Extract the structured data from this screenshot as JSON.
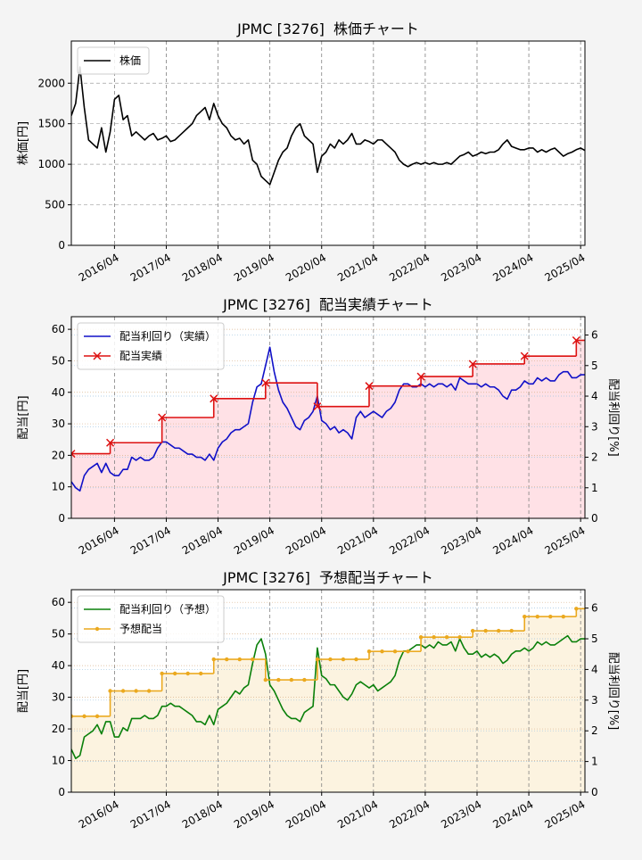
{
  "chart_data": [
    {
      "type": "line",
      "title": "JPMC [3276]  株価チャート",
      "ylabel": "株価[円]",
      "x": [
        "2015/06",
        "2015/07",
        "2015/08",
        "2015/09",
        "2015/10",
        "2015/11",
        "2015/12",
        "2016/01",
        "2016/02",
        "2016/03",
        "2016/04",
        "2016/05",
        "2016/06",
        "2016/07",
        "2016/08",
        "2016/09",
        "2016/10",
        "2016/11",
        "2016/12",
        "2017/01",
        "2017/02",
        "2017/03",
        "2017/04",
        "2017/05",
        "2017/06",
        "2017/07",
        "2017/08",
        "2017/09",
        "2017/10",
        "2017/11",
        "2017/12",
        "2018/01",
        "2018/02",
        "2018/03",
        "2018/04",
        "2018/05",
        "2018/06",
        "2018/07",
        "2018/08",
        "2018/09",
        "2018/10",
        "2018/11",
        "2018/12",
        "2019/01",
        "2019/02",
        "2019/03",
        "2019/04",
        "2019/05",
        "2019/06",
        "2019/07",
        "2019/08",
        "2019/09",
        "2019/10",
        "2019/11",
        "2019/12",
        "2020/01",
        "2020/02",
        "2020/03",
        "2020/04",
        "2020/05",
        "2020/06",
        "2020/07",
        "2020/08",
        "2020/09",
        "2020/10",
        "2020/11",
        "2020/12",
        "2021/01",
        "2021/02",
        "2021/03",
        "2021/04",
        "2021/05",
        "2021/06",
        "2021/07",
        "2021/08",
        "2021/09",
        "2021/10",
        "2021/11",
        "2021/12",
        "2022/01",
        "2022/02",
        "2022/03",
        "2022/04",
        "2022/05",
        "2022/06",
        "2022/07",
        "2022/08",
        "2022/09",
        "2022/10",
        "2022/11",
        "2022/12",
        "2023/01",
        "2023/02",
        "2023/03",
        "2023/04",
        "2023/05",
        "2023/06",
        "2023/07",
        "2023/08",
        "2023/09",
        "2023/10",
        "2023/11",
        "2023/12",
        "2024/01",
        "2024/02",
        "2024/03",
        "2024/04",
        "2024/05",
        "2024/06",
        "2024/07",
        "2024/08",
        "2024/09",
        "2024/10",
        "2024/11",
        "2024/12",
        "2025/01",
        "2025/02",
        "2025/03",
        "2025/04",
        "2025/05"
      ],
      "series": [
        {
          "name": "株価",
          "color": "#000000",
          "values": [
            1600,
            1750,
            2200,
            1700,
            1300,
            1250,
            1200,
            1450,
            1150,
            1400,
            1800,
            1850,
            1550,
            1600,
            1350,
            1400,
            1350,
            1300,
            1350,
            1380,
            1300,
            1320,
            1350,
            1280,
            1300,
            1350,
            1400,
            1450,
            1500,
            1600,
            1650,
            1700,
            1550,
            1750,
            1600,
            1500,
            1450,
            1350,
            1300,
            1320,
            1250,
            1300,
            1050,
            1000,
            850,
            800,
            750,
            900,
            1050,
            1150,
            1200,
            1350,
            1450,
            1500,
            1350,
            1300,
            1250,
            900,
            1100,
            1150,
            1250,
            1200,
            1300,
            1250,
            1300,
            1380,
            1250,
            1250,
            1300,
            1280,
            1250,
            1300,
            1300,
            1250,
            1200,
            1150,
            1050,
            1000,
            970,
            1000,
            1020,
            1000,
            1020,
            1000,
            1020,
            1000,
            1000,
            1020,
            1000,
            1050,
            1100,
            1120,
            1150,
            1100,
            1120,
            1150,
            1130,
            1150,
            1150,
            1180,
            1250,
            1300,
            1220,
            1200,
            1180,
            1180,
            1200,
            1200,
            1150,
            1180,
            1150,
            1180,
            1200,
            1150,
            1100,
            1130,
            1150,
            1180,
            1200,
            1170
          ]
        }
      ],
      "xlim": [
        "2015/06",
        "2025/05"
      ],
      "xticks": [
        "2016/04",
        "2017/04",
        "2018/04",
        "2019/04",
        "2020/04",
        "2021/04",
        "2022/04",
        "2023/04",
        "2024/04",
        "2025/04"
      ],
      "ylim": [
        0,
        2520
      ],
      "yticks": [
        0,
        500,
        1000,
        1500,
        2000
      ],
      "grid": true,
      "legend": "upper left"
    },
    {
      "type": "line",
      "title": "JPMC [3276]  配当実績チャート",
      "ylabel": "配当[円]",
      "y2label": "配当利回り[%]",
      "x": [
        "2015/06",
        "2015/07",
        "2015/08",
        "2015/09",
        "2015/10",
        "2015/11",
        "2015/12",
        "2016/01",
        "2016/02",
        "2016/03",
        "2016/04",
        "2016/05",
        "2016/06",
        "2016/07",
        "2016/08",
        "2016/09",
        "2016/10",
        "2016/11",
        "2016/12",
        "2017/01",
        "2017/02",
        "2017/03",
        "2017/04",
        "2017/05",
        "2017/06",
        "2017/07",
        "2017/08",
        "2017/09",
        "2017/10",
        "2017/11",
        "2017/12",
        "2018/01",
        "2018/02",
        "2018/03",
        "2018/04",
        "2018/05",
        "2018/06",
        "2018/07",
        "2018/08",
        "2018/09",
        "2018/10",
        "2018/11",
        "2018/12",
        "2019/01",
        "2019/02",
        "2019/03",
        "2019/04",
        "2019/05",
        "2019/06",
        "2019/07",
        "2019/08",
        "2019/09",
        "2019/10",
        "2019/11",
        "2019/12",
        "2020/01",
        "2020/02",
        "2020/03",
        "2020/04",
        "2020/05",
        "2020/06",
        "2020/07",
        "2020/08",
        "2020/09",
        "2020/10",
        "2020/11",
        "2020/12",
        "2021/01",
        "2021/02",
        "2021/03",
        "2021/04",
        "2021/05",
        "2021/06",
        "2021/07",
        "2021/08",
        "2021/09",
        "2021/10",
        "2021/11",
        "2021/12",
        "2022/01",
        "2022/02",
        "2022/03",
        "2022/04",
        "2022/05",
        "2022/06",
        "2022/07",
        "2022/08",
        "2022/09",
        "2022/10",
        "2022/11",
        "2022/12",
        "2023/01",
        "2023/02",
        "2023/03",
        "2023/04",
        "2023/05",
        "2023/06",
        "2023/07",
        "2023/08",
        "2023/09",
        "2023/10",
        "2023/11",
        "2023/12",
        "2024/01",
        "2024/02",
        "2024/03",
        "2024/04",
        "2024/05",
        "2024/06",
        "2024/07",
        "2024/08",
        "2024/09",
        "2024/10",
        "2024/11",
        "2024/12",
        "2025/01",
        "2025/02",
        "2025/03",
        "2025/04",
        "2025/05"
      ],
      "series": [
        {
          "name": "配当利回り（実績）",
          "color": "#1010c8",
          "axis": "y2",
          "values": [
            1.2,
            1.0,
            0.9,
            1.4,
            1.6,
            1.7,
            1.8,
            1.5,
            1.8,
            1.5,
            1.4,
            1.4,
            1.6,
            1.6,
            2.0,
            1.9,
            2.0,
            1.9,
            1.9,
            2.0,
            2.3,
            2.5,
            2.5,
            2.4,
            2.3,
            2.3,
            2.2,
            2.1,
            2.1,
            2.0,
            2.0,
            1.9,
            2.1,
            1.9,
            2.3,
            2.5,
            2.6,
            2.8,
            2.9,
            2.9,
            3.0,
            3.1,
            3.8,
            4.3,
            4.4,
            5.0,
            5.6,
            4.8,
            4.2,
            3.8,
            3.6,
            3.3,
            3.0,
            2.9,
            3.2,
            3.3,
            3.5,
            4.0,
            3.2,
            3.1,
            2.9,
            3.0,
            2.8,
            2.9,
            2.8,
            2.6,
            3.3,
            3.5,
            3.3,
            3.4,
            3.5,
            3.4,
            3.3,
            3.5,
            3.6,
            3.8,
            4.2,
            4.4,
            4.4,
            4.3,
            4.3,
            4.4,
            4.3,
            4.4,
            4.3,
            4.4,
            4.4,
            4.3,
            4.4,
            4.2,
            4.6,
            4.5,
            4.4,
            4.4,
            4.4,
            4.3,
            4.4,
            4.3,
            4.3,
            4.2,
            4.0,
            3.9,
            4.2,
            4.2,
            4.3,
            4.5,
            4.4,
            4.4,
            4.6,
            4.5,
            4.6,
            4.5,
            4.5,
            4.7,
            4.8,
            4.8,
            4.6,
            4.6,
            4.7,
            4.7
          ]
        },
        {
          "name": "配当実績",
          "color": "#dd1111",
          "drawstyle": "steps-post",
          "marker": "x",
          "fill": "#ffe1e6",
          "x": [
            "2015/06",
            "2016/03",
            "2017/03",
            "2018/03",
            "2019/03",
            "2020/03",
            "2021/03",
            "2022/03",
            "2023/03",
            "2024/03",
            "2025/03"
          ],
          "values": [
            20.5,
            24,
            32,
            38,
            43,
            35.5,
            42,
            45,
            49,
            51.5,
            56.5
          ]
        }
      ],
      "xlim": [
        "2015/06",
        "2025/05"
      ],
      "xticks": [
        "2016/04",
        "2017/04",
        "2018/04",
        "2019/04",
        "2020/04",
        "2021/04",
        "2022/04",
        "2023/04",
        "2024/04",
        "2025/04"
      ],
      "ylim": [
        0,
        64
      ],
      "yticks": [
        0,
        10,
        20,
        30,
        40,
        50,
        60
      ],
      "y2lim": [
        0,
        6.6
      ],
      "y2ticks": [
        0,
        1,
        2,
        3,
        4,
        5,
        6
      ],
      "grid": true,
      "legend": "upper left"
    },
    {
      "type": "line",
      "title": "JPMC [3276]  予想配当チャート",
      "ylabel": "配当[円]",
      "y2label": "配当利回り[%]",
      "x": [
        "2015/06",
        "2015/07",
        "2015/08",
        "2015/09",
        "2015/10",
        "2015/11",
        "2015/12",
        "2016/01",
        "2016/02",
        "2016/03",
        "2016/04",
        "2016/05",
        "2016/06",
        "2016/07",
        "2016/08",
        "2016/09",
        "2016/10",
        "2016/11",
        "2016/12",
        "2017/01",
        "2017/02",
        "2017/03",
        "2017/04",
        "2017/05",
        "2017/06",
        "2017/07",
        "2017/08",
        "2017/09",
        "2017/10",
        "2017/11",
        "2017/12",
        "2018/01",
        "2018/02",
        "2018/03",
        "2018/04",
        "2018/05",
        "2018/06",
        "2018/07",
        "2018/08",
        "2018/09",
        "2018/10",
        "2018/11",
        "2018/12",
        "2019/01",
        "2019/02",
        "2019/03",
        "2019/04",
        "2019/05",
        "2019/06",
        "2019/07",
        "2019/08",
        "2019/09",
        "2019/10",
        "2019/11",
        "2019/12",
        "2020/01",
        "2020/02",
        "2020/03",
        "2020/04",
        "2020/05",
        "2020/06",
        "2020/07",
        "2020/08",
        "2020/09",
        "2020/10",
        "2020/11",
        "2020/12",
        "2021/01",
        "2021/02",
        "2021/03",
        "2021/04",
        "2021/05",
        "2021/06",
        "2021/07",
        "2021/08",
        "2021/09",
        "2021/10",
        "2021/11",
        "2021/12",
        "2022/01",
        "2022/02",
        "2022/03",
        "2022/04",
        "2022/05",
        "2022/06",
        "2022/07",
        "2022/08",
        "2022/09",
        "2022/10",
        "2022/11",
        "2022/12",
        "2023/01",
        "2023/02",
        "2023/03",
        "2023/04",
        "2023/05",
        "2023/06",
        "2023/07",
        "2023/08",
        "2023/09",
        "2023/10",
        "2023/11",
        "2023/12",
        "2024/01",
        "2024/02",
        "2024/03",
        "2024/04",
        "2024/05",
        "2024/06",
        "2024/07",
        "2024/08",
        "2024/09",
        "2024/10",
        "2024/11",
        "2024/12",
        "2025/01",
        "2025/02",
        "2025/03",
        "2025/04",
        "2025/05"
      ],
      "series": [
        {
          "name": "配当利回り（予想）",
          "color": "#0a800a",
          "axis": "y2",
          "values": [
            1.4,
            1.1,
            1.2,
            1.8,
            1.9,
            2.0,
            2.2,
            1.9,
            2.3,
            2.3,
            1.8,
            1.8,
            2.1,
            2.0,
            2.4,
            2.4,
            2.4,
            2.5,
            2.4,
            2.4,
            2.5,
            2.8,
            2.8,
            2.9,
            2.8,
            2.8,
            2.7,
            2.6,
            2.5,
            2.3,
            2.3,
            2.2,
            2.5,
            2.2,
            2.7,
            2.8,
            2.9,
            3.1,
            3.3,
            3.2,
            3.4,
            3.5,
            4.2,
            4.8,
            5.0,
            4.5,
            3.5,
            3.3,
            3.0,
            2.7,
            2.5,
            2.4,
            2.4,
            2.3,
            2.6,
            2.7,
            2.8,
            4.7,
            3.8,
            3.7,
            3.5,
            3.5,
            3.3,
            3.1,
            3.0,
            3.2,
            3.5,
            3.6,
            3.5,
            3.4,
            3.5,
            3.3,
            3.4,
            3.5,
            3.6,
            3.8,
            4.3,
            4.6,
            4.6,
            4.7,
            4.8,
            4.8,
            4.7,
            4.8,
            4.7,
            4.9,
            4.8,
            4.8,
            4.9,
            4.6,
            5.0,
            4.7,
            4.5,
            4.5,
            4.6,
            4.4,
            4.5,
            4.4,
            4.5,
            4.4,
            4.2,
            4.3,
            4.5,
            4.6,
            4.6,
            4.7,
            4.6,
            4.7,
            4.9,
            4.8,
            4.9,
            4.8,
            4.8,
            4.9,
            5.0,
            5.1,
            4.9,
            4.9,
            5.0,
            5.0
          ]
        },
        {
          "name": "予想配当",
          "color": "#eba91f",
          "drawstyle": "steps-post",
          "marker": "o",
          "fill": "#fcf3e0",
          "x": [
            "2015/06",
            "2015/09",
            "2015/12",
            "2016/03",
            "2016/06",
            "2016/09",
            "2016/12",
            "2017/03",
            "2017/06",
            "2017/09",
            "2017/12",
            "2018/03",
            "2018/06",
            "2018/09",
            "2018/12",
            "2019/03",
            "2019/06",
            "2019/09",
            "2019/12",
            "2020/03",
            "2020/06",
            "2020/09",
            "2020/12",
            "2021/03",
            "2021/06",
            "2021/09",
            "2021/12",
            "2022/03",
            "2022/06",
            "2022/09",
            "2022/12",
            "2023/03",
            "2023/06",
            "2023/09",
            "2023/12",
            "2024/03",
            "2024/06",
            "2024/09",
            "2024/12",
            "2025/03"
          ],
          "values": [
            24,
            24,
            24,
            32,
            32,
            32,
            32,
            37.5,
            37.5,
            37.5,
            37.5,
            42,
            42,
            42,
            42,
            35.5,
            35.5,
            35.5,
            35.5,
            42,
            42,
            42,
            42,
            44.5,
            44.5,
            44.5,
            44.5,
            49,
            49,
            49,
            49,
            51,
            51,
            51,
            51,
            55.5,
            55.5,
            55.5,
            55.5,
            58
          ]
        }
      ],
      "xlim": [
        "2015/06",
        "2025/05"
      ],
      "xticks": [
        "2016/04",
        "2017/04",
        "2018/04",
        "2019/04",
        "2020/04",
        "2021/04",
        "2022/04",
        "2023/04",
        "2024/04",
        "2025/04"
      ],
      "ylim": [
        0,
        64
      ],
      "yticks": [
        0,
        10,
        20,
        30,
        40,
        50,
        60
      ],
      "y2lim": [
        0,
        6.6
      ],
      "y2ticks": [
        0,
        1,
        2,
        3,
        4,
        5,
        6
      ],
      "grid": true,
      "legend": "upper left"
    }
  ]
}
